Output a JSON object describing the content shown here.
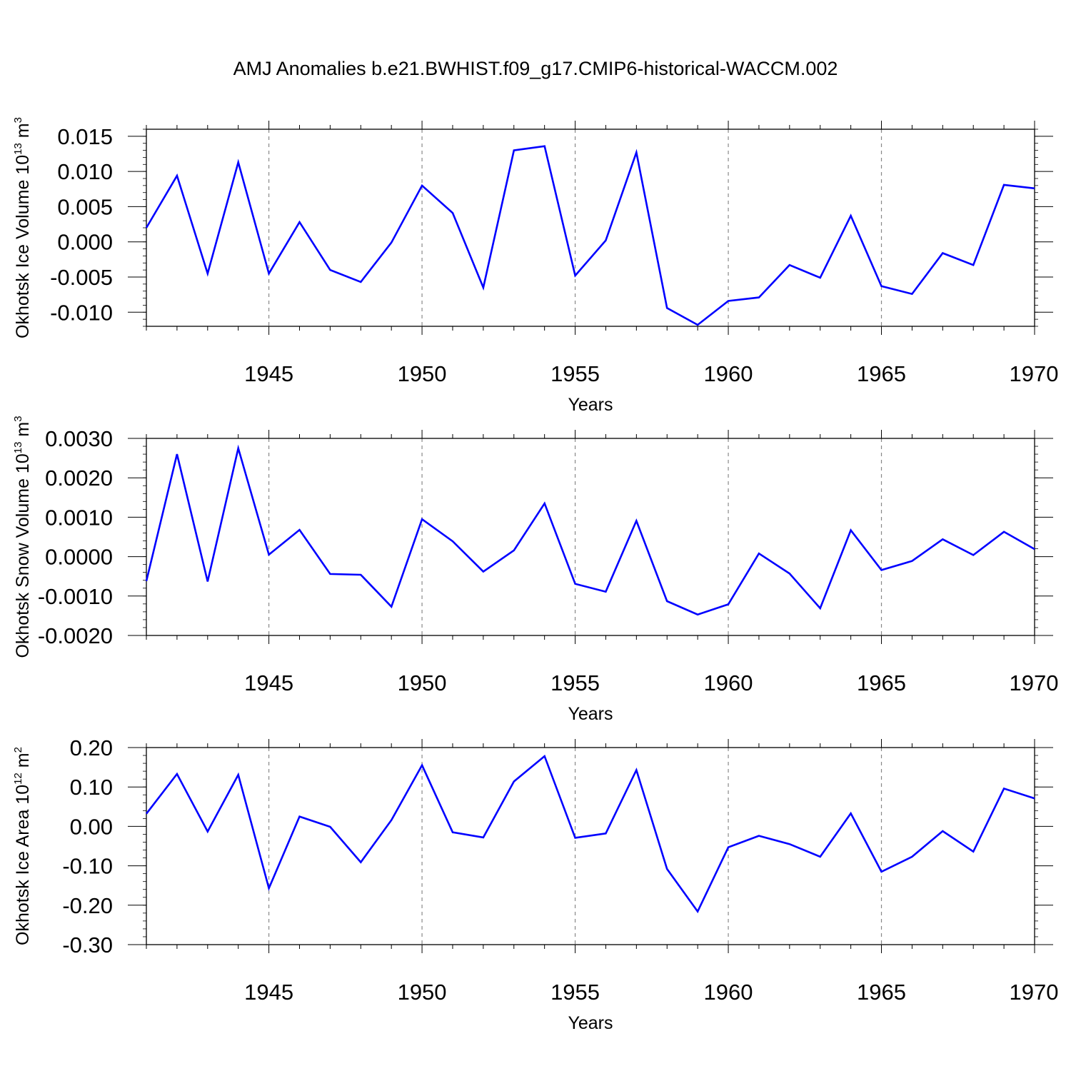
{
  "title": "AMJ Anomalies b.e21.BWHIST.f09_g17.CMIP6-historical-WACCM.002",
  "line_color": "#0000ff",
  "grid_color": "#888888",
  "chart_data": [
    {
      "type": "line",
      "xlabel": "Years",
      "ylabel": {
        "text": "Okhotsk Ice Volume 10",
        "exp": "13",
        "unit": " m",
        "unit_exp": "3"
      },
      "xlim": [
        1941,
        1970
      ],
      "ylim": [
        -0.012,
        0.016
      ],
      "x_ticks": [
        1945,
        1950,
        1955,
        1960,
        1965,
        1970
      ],
      "y_ticks": [
        "0.015",
        "0.010",
        "0.005",
        "0.000",
        "-0.005",
        "-0.010"
      ],
      "y_tick_values": [
        0.015,
        0.01,
        0.005,
        0.0,
        -0.005,
        -0.01
      ],
      "y_minor_step": 0.001,
      "x": [
        1941,
        1942,
        1943,
        1944,
        1945,
        1946,
        1947,
        1948,
        1949,
        1950,
        1951,
        1952,
        1953,
        1954,
        1955,
        1956,
        1957,
        1958,
        1959,
        1960,
        1961,
        1962,
        1963,
        1964,
        1965,
        1966,
        1967,
        1968,
        1969,
        1970
      ],
      "series": [
        {
          "values": [
            0.002,
            0.0094,
            -0.0045,
            0.0113,
            -0.0045,
            0.0028,
            -0.004,
            -0.0057,
            -0.0001,
            0.008,
            0.0041,
            -0.0065,
            0.013,
            0.0136,
            -0.0048,
            0.0002,
            0.0127,
            -0.0094,
            -0.0118,
            -0.0084,
            -0.0079,
            -0.0033,
            -0.0051,
            0.0037,
            -0.0063,
            -0.0074,
            -0.0016,
            -0.0033,
            0.0081,
            0.0076
          ]
        }
      ],
      "grid": "dashed vertical at major x ticks"
    },
    {
      "type": "line",
      "xlabel": "Years",
      "ylabel": {
        "text": "Okhotsk Snow Volume 10",
        "exp": "13",
        "unit": " m",
        "unit_exp": "3"
      },
      "xlim": [
        1941,
        1970
      ],
      "ylim": [
        -0.002,
        0.003
      ],
      "x_ticks": [
        1945,
        1950,
        1955,
        1960,
        1965,
        1970
      ],
      "y_ticks": [
        "0.0030",
        "0.0020",
        "0.0010",
        "0.0000",
        "-0.0010",
        "-0.0020"
      ],
      "y_tick_values": [
        0.003,
        0.002,
        0.001,
        0.0,
        -0.001,
        -0.002
      ],
      "y_minor_step": 0.0002,
      "x": [
        1941,
        1942,
        1943,
        1944,
        1945,
        1946,
        1947,
        1948,
        1949,
        1950,
        1951,
        1952,
        1953,
        1954,
        1955,
        1956,
        1957,
        1958,
        1959,
        1960,
        1961,
        1962,
        1963,
        1964,
        1965,
        1966,
        1967,
        1968,
        1969,
        1970
      ],
      "series": [
        {
          "values": [
            -0.00062,
            0.0026,
            -0.00063,
            0.00275,
            5e-05,
            0.00068,
            -0.00044,
            -0.00046,
            -0.00127,
            0.00095,
            0.00039,
            -0.00038,
            0.00016,
            0.00135,
            -0.00069,
            -0.00089,
            0.00091,
            -0.00113,
            -0.00147,
            -0.00121,
            8e-05,
            -0.00043,
            -0.00131,
            0.00067,
            -0.00034,
            -0.00011,
            0.00044,
            4e-05,
            0.00063,
            0.00019
          ]
        }
      ],
      "grid": "dashed vertical at major x ticks"
    },
    {
      "type": "line",
      "xlabel": "Years",
      "ylabel": {
        "text": "Okhotsk Ice Area 10",
        "exp": "12",
        "unit": " m",
        "unit_exp": "2"
      },
      "xlim": [
        1941,
        1970
      ],
      "ylim": [
        -0.3,
        0.2
      ],
      "x_ticks": [
        1945,
        1950,
        1955,
        1960,
        1965,
        1970
      ],
      "y_ticks": [
        "0.20",
        "0.10",
        "0.00",
        "-0.10",
        "-0.20",
        "-0.30"
      ],
      "y_tick_values": [
        0.2,
        0.1,
        0.0,
        -0.1,
        -0.2,
        -0.3
      ],
      "y_minor_step": 0.02,
      "x": [
        1941,
        1942,
        1943,
        1944,
        1945,
        1946,
        1947,
        1948,
        1949,
        1950,
        1951,
        1952,
        1953,
        1954,
        1955,
        1956,
        1957,
        1958,
        1959,
        1960,
        1961,
        1962,
        1963,
        1964,
        1965,
        1966,
        1967,
        1968,
        1969,
        1970
      ],
      "series": [
        {
          "values": [
            0.032,
            0.133,
            -0.013,
            0.131,
            -0.157,
            0.025,
            -0.001,
            -0.091,
            0.016,
            0.155,
            -0.015,
            -0.028,
            0.114,
            0.178,
            -0.029,
            -0.018,
            0.143,
            -0.108,
            -0.216,
            -0.053,
            -0.024,
            -0.045,
            -0.077,
            0.033,
            -0.115,
            -0.077,
            -0.012,
            -0.064,
            0.096,
            0.071
          ]
        }
      ],
      "grid": "dashed vertical at major x ticks"
    }
  ]
}
